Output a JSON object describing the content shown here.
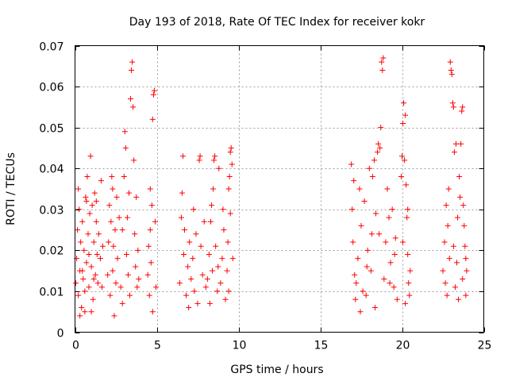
{
  "chart_data": {
    "type": "scatter",
    "title": "Day 193 of 2018, Rate Of TEC Index for receiver kokr",
    "xlabel": "GPS time / hours",
    "ylabel": "ROTI / TECUs",
    "xlim": [
      0,
      25
    ],
    "ylim": [
      0,
      0.07
    ],
    "xticks": [
      0,
      5,
      10,
      15,
      20,
      25
    ],
    "xtick_labels": [
      "0",
      "5",
      "10",
      "15",
      "20",
      "25"
    ],
    "yticks": [
      0,
      0.01,
      0.02,
      0.03,
      0.04,
      0.05,
      0.06,
      0.07
    ],
    "ytick_labels": [
      "0",
      "0.01",
      "0.02",
      "0.03",
      "0.04",
      "0.05",
      "0.06",
      "0.07"
    ],
    "grid": true,
    "marker": "+",
    "color": "#ff0000",
    "series": [
      {
        "name": "ROTI",
        "points": [
          [
            0.05,
            0.012
          ],
          [
            0.1,
            0.018
          ],
          [
            0.15,
            0.025
          ],
          [
            0.2,
            0.009
          ],
          [
            0.25,
            0.03
          ],
          [
            0.3,
            0.015
          ],
          [
            0.35,
            0.022
          ],
          [
            0.4,
            0.006
          ],
          [
            0.45,
            0.027
          ],
          [
            0.5,
            0.013
          ],
          [
            0.55,
            0.02
          ],
          [
            0.6,
            0.01
          ],
          [
            0.65,
            0.033
          ],
          [
            0.7,
            0.017
          ],
          [
            0.75,
            0.038
          ],
          [
            0.8,
            0.024
          ],
          [
            0.85,
            0.011
          ],
          [
            0.9,
            0.029
          ],
          [
            0.95,
            0.043
          ],
          [
            1.0,
            0.016
          ],
          [
            1.05,
            0.031
          ],
          [
            1.1,
            0.008
          ],
          [
            1.15,
            0.022
          ],
          [
            1.2,
            0.034
          ],
          [
            1.25,
            0.014
          ],
          [
            1.3,
            0.027
          ],
          [
            1.35,
            0.019
          ],
          [
            1.4,
            0.012
          ],
          [
            1.45,
            0.024
          ],
          [
            1.55,
            0.018
          ],
          [
            1.6,
            0.037
          ],
          [
            1.65,
            0.011
          ],
          [
            1.7,
            0.021
          ],
          [
            0.3,
            0.004
          ],
          [
            0.6,
            0.005
          ],
          [
            1.0,
            0.005
          ],
          [
            0.2,
            0.035
          ],
          [
            0.7,
            0.032
          ],
          [
            1.3,
            0.032
          ],
          [
            0.45,
            0.015
          ],
          [
            1.15,
            0.013
          ],
          [
            0.85,
            0.019
          ],
          [
            2.0,
            0.014
          ],
          [
            2.05,
            0.022
          ],
          [
            2.1,
            0.031
          ],
          [
            2.15,
            0.009
          ],
          [
            2.2,
            0.027
          ],
          [
            2.25,
            0.038
          ],
          [
            2.3,
            0.015
          ],
          [
            2.35,
            0.021
          ],
          [
            2.4,
            0.004
          ],
          [
            2.45,
            0.025
          ],
          [
            2.5,
            0.012
          ],
          [
            2.55,
            0.033
          ],
          [
            2.6,
            0.018
          ],
          [
            2.7,
            0.028
          ],
          [
            2.8,
            0.011
          ],
          [
            2.9,
            0.025
          ],
          [
            3.0,
            0.038
          ],
          [
            3.05,
            0.049
          ],
          [
            3.1,
            0.045
          ],
          [
            3.15,
            0.019
          ],
          [
            3.2,
            0.028
          ],
          [
            3.25,
            0.014
          ],
          [
            3.3,
            0.034
          ],
          [
            3.4,
            0.057
          ],
          [
            3.45,
            0.064
          ],
          [
            3.5,
            0.066
          ],
          [
            3.55,
            0.055
          ],
          [
            3.6,
            0.042
          ],
          [
            3.65,
            0.024
          ],
          [
            3.7,
            0.016
          ],
          [
            3.75,
            0.033
          ],
          [
            3.8,
            0.011
          ],
          [
            3.85,
            0.02
          ],
          [
            3.9,
            0.013
          ],
          [
            2.3,
            0.035
          ],
          [
            2.9,
            0.007
          ],
          [
            3.35,
            0.009
          ],
          [
            4.45,
            0.014
          ],
          [
            4.5,
            0.021
          ],
          [
            4.55,
            0.009
          ],
          [
            4.6,
            0.035
          ],
          [
            4.65,
            0.017
          ],
          [
            4.7,
            0.031
          ],
          [
            4.75,
            0.052
          ],
          [
            4.8,
            0.058
          ],
          [
            4.85,
            0.059
          ],
          [
            4.9,
            0.027
          ],
          [
            4.95,
            0.011
          ],
          [
            4.6,
            0.025
          ],
          [
            4.75,
            0.005
          ],
          [
            6.4,
            0.012
          ],
          [
            6.5,
            0.028
          ],
          [
            6.55,
            0.034
          ],
          [
            6.6,
            0.043
          ],
          [
            6.65,
            0.019
          ],
          [
            6.7,
            0.025
          ],
          [
            6.8,
            0.009
          ],
          [
            6.9,
            0.016
          ],
          [
            7.0,
            0.022
          ],
          [
            7.1,
            0.013
          ],
          [
            7.2,
            0.018
          ],
          [
            7.3,
            0.01
          ],
          [
            7.4,
            0.024
          ],
          [
            7.5,
            0.007
          ],
          [
            7.6,
            0.042
          ],
          [
            7.65,
            0.043
          ],
          [
            7.7,
            0.021
          ],
          [
            7.8,
            0.014
          ],
          [
            7.9,
            0.027
          ],
          [
            8.0,
            0.011
          ],
          [
            7.25,
            0.03
          ],
          [
            6.95,
            0.006
          ],
          [
            8.1,
            0.013
          ],
          [
            8.2,
            0.019
          ],
          [
            8.3,
            0.027
          ],
          [
            8.35,
            0.031
          ],
          [
            8.4,
            0.015
          ],
          [
            8.45,
            0.035
          ],
          [
            8.5,
            0.042
          ],
          [
            8.55,
            0.043
          ],
          [
            8.6,
            0.021
          ],
          [
            8.7,
            0.01
          ],
          [
            8.8,
            0.04
          ],
          [
            8.9,
            0.012
          ],
          [
            9.0,
            0.018
          ],
          [
            9.05,
            0.03
          ],
          [
            9.1,
            0.025
          ],
          [
            9.2,
            0.008
          ],
          [
            8.25,
            0.007
          ],
          [
            8.75,
            0.016
          ],
          [
            9.3,
            0.015
          ],
          [
            9.35,
            0.022
          ],
          [
            9.4,
            0.035
          ],
          [
            9.45,
            0.038
          ],
          [
            9.5,
            0.044
          ],
          [
            9.55,
            0.045
          ],
          [
            9.6,
            0.041
          ],
          [
            9.65,
            0.018
          ],
          [
            9.4,
            0.01
          ],
          [
            9.5,
            0.029
          ],
          [
            16.9,
            0.041
          ],
          [
            16.95,
            0.03
          ],
          [
            17.0,
            0.022
          ],
          [
            17.05,
            0.037
          ],
          [
            17.1,
            0.014
          ],
          [
            17.2,
            0.012
          ],
          [
            17.3,
            0.018
          ],
          [
            17.4,
            0.035
          ],
          [
            17.5,
            0.026
          ],
          [
            17.6,
            0.01
          ],
          [
            17.7,
            0.032
          ],
          [
            17.8,
            0.009
          ],
          [
            17.9,
            0.02
          ],
          [
            18.0,
            0.04
          ],
          [
            18.1,
            0.015
          ],
          [
            18.2,
            0.038
          ],
          [
            18.3,
            0.042
          ],
          [
            18.4,
            0.029
          ],
          [
            18.5,
            0.044
          ],
          [
            18.55,
            0.046
          ],
          [
            18.6,
            0.024
          ],
          [
            18.65,
            0.045
          ],
          [
            18.7,
            0.05
          ],
          [
            18.75,
            0.066
          ],
          [
            18.8,
            0.064
          ],
          [
            18.85,
            0.067
          ],
          [
            18.9,
            0.013
          ],
          [
            19.0,
            0.022
          ],
          [
            19.1,
            0.035
          ],
          [
            19.2,
            0.028
          ],
          [
            19.3,
            0.017
          ],
          [
            19.4,
            0.03
          ],
          [
            19.5,
            0.011
          ],
          [
            19.6,
            0.023
          ],
          [
            19.7,
            0.008
          ],
          [
            17.15,
            0.008
          ],
          [
            17.45,
            0.005
          ],
          [
            18.35,
            0.006
          ],
          [
            17.85,
            0.016
          ],
          [
            19.25,
            0.012
          ],
          [
            18.15,
            0.024
          ],
          [
            19.55,
            0.019
          ],
          [
            19.95,
            0.038
          ],
          [
            20.0,
            0.043
          ],
          [
            20.05,
            0.051
          ],
          [
            20.1,
            0.056
          ],
          [
            20.15,
            0.042
          ],
          [
            20.2,
            0.053
          ],
          [
            20.25,
            0.036
          ],
          [
            20.3,
            0.028
          ],
          [
            20.35,
            0.019
          ],
          [
            20.4,
            0.012
          ],
          [
            20.45,
            0.009
          ],
          [
            20.5,
            0.015
          ],
          [
            20.05,
            0.022
          ],
          [
            20.2,
            0.007
          ],
          [
            20.35,
            0.03
          ],
          [
            22.5,
            0.015
          ],
          [
            22.6,
            0.022
          ],
          [
            22.7,
            0.031
          ],
          [
            22.8,
            0.026
          ],
          [
            22.85,
            0.035
          ],
          [
            22.9,
            0.018
          ],
          [
            22.95,
            0.066
          ],
          [
            23.0,
            0.064
          ],
          [
            23.05,
            0.063
          ],
          [
            23.1,
            0.056
          ],
          [
            23.15,
            0.055
          ],
          [
            23.2,
            0.044
          ],
          [
            23.3,
            0.046
          ],
          [
            23.4,
            0.028
          ],
          [
            23.5,
            0.038
          ],
          [
            23.55,
            0.033
          ],
          [
            23.6,
            0.046
          ],
          [
            23.65,
            0.054
          ],
          [
            23.7,
            0.055
          ],
          [
            23.75,
            0.031
          ],
          [
            23.8,
            0.026
          ],
          [
            23.85,
            0.021
          ],
          [
            23.9,
            0.018
          ],
          [
            23.95,
            0.015
          ],
          [
            22.75,
            0.009
          ],
          [
            23.25,
            0.011
          ],
          [
            23.45,
            0.008
          ],
          [
            23.35,
            0.017
          ],
          [
            23.15,
            0.021
          ],
          [
            22.65,
            0.012
          ],
          [
            23.7,
            0.013
          ],
          [
            23.9,
            0.009
          ]
        ]
      }
    ]
  }
}
